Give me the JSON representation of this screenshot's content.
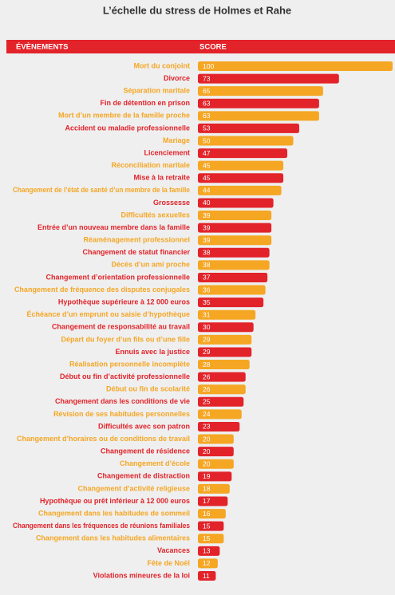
{
  "chart_data": {
    "type": "bar",
    "orientation": "horizontal",
    "title": "L’échelle du stress de Holmes et Rahe",
    "category_header": "ÉVÈNEMENTS",
    "value_header": "SCORE",
    "header_color": "#e2232a",
    "palette": [
      "#f5a623",
      "#e2232a"
    ],
    "xlim": [
      0,
      100
    ],
    "categories": [
      "Mort du conjoint",
      "Divorce",
      "Séparation maritale",
      "Fin de détention en prison",
      "Mort d’un membre de la famille proche",
      "Accident ou maladie professionnelle",
      "Mariage",
      "Licenciement",
      "Réconciliation maritale",
      "Mise à la retraite",
      "Changement de l’état de santé d’un membre de la famille",
      "Grossesse",
      "Difficultés sexuelles",
      "Entrée d’un nouveau membre dans la famille",
      "Réaménagement professionnel",
      "Changement de statut financier",
      "Décès d’un ami proche",
      "Changement d’orientation professionnelle",
      "Changement de fréquence des disputes conjugales",
      "Hypothèque supérieure à 12 000 euros",
      "Échéance d’un emprunt ou saisie d’hypothèque",
      "Changement de responsabilité au travail",
      "Départ du foyer d’un fils ou d’une fille",
      "Ennuis avec la justice",
      "Réalisation personnelle incomplète",
      "Début ou fin d’activité professionnelle",
      "Début ou fin de scolarité",
      "Changement dans les conditions de vie",
      "Révision de ses habitudes personnelles",
      "Difficultés avec son patron",
      "Changement d’horaires ou de conditions de travail",
      "Changement de résidence",
      "Changement d’école",
      "Changement de distraction",
      "Changement d’activité religieuse",
      "Hypothèque ou prêt inférieur à 12 000 euros",
      "Changement dans les habitudes de sommeil",
      "Changement dans les fréquences de réunions familiales",
      "Changement dans les habitudes alimentaires",
      "Vacances",
      "Fête de Noël",
      "Violations mineures de la loi"
    ],
    "values": [
      100,
      73,
      65,
      63,
      63,
      53,
      50,
      47,
      45,
      45,
      44,
      40,
      39,
      39,
      39,
      38,
      38,
      37,
      36,
      35,
      31,
      30,
      29,
      29,
      28,
      26,
      26,
      25,
      24,
      23,
      20,
      20,
      20,
      19,
      18,
      17,
      16,
      15,
      15,
      13,
      12,
      11
    ]
  }
}
